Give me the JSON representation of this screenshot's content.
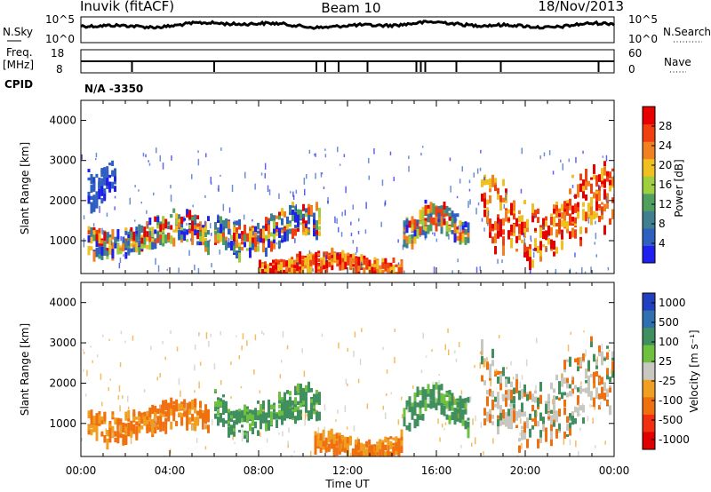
{
  "header": {
    "station": "Inuvik (fitACF)",
    "beam": "Beam 10",
    "date": "18/Nov/2013"
  },
  "strips": {
    "nsky_label": "N.Sky",
    "nsky_ticks": [
      "10^5",
      "10^0"
    ],
    "nsearch_label": "N.Search",
    "nsearch_ticks": [
      "10^5",
      "10^0"
    ],
    "freq_label_1": "Freq.",
    "freq_label_2": "[MHz]",
    "freq_ticks": [
      "18",
      "8"
    ],
    "nave_label": "Nave",
    "nave_ticks": [
      "60",
      "0"
    ],
    "cpid_label": "CPID",
    "cpid_value": "N/A -3350"
  },
  "chart_data": [
    {
      "type": "heatmap",
      "name": "power-panel",
      "xlabel": "Time UT",
      "ylabel": "Slant Range [km]",
      "xlim_hours": [
        0,
        24
      ],
      "ylim": [
        180,
        4500
      ],
      "yticks": [
        "1000",
        "2000",
        "3000",
        "4000"
      ],
      "xticks": [
        "00:00",
        "04:00",
        "08:00",
        "12:00",
        "16:00",
        "20:00",
        "00:00"
      ],
      "colorbar": {
        "label": "Power [dB]",
        "ticks": [
          "4",
          "8",
          "12",
          "16",
          "20",
          "24",
          "28"
        ],
        "colors": [
          "#1f1ff0",
          "#2f5fbf",
          "#3f7f8f",
          "#4f9f5f",
          "#9fcf3f",
          "#f0c020",
          "#f08020",
          "#f04010",
          "#e80000"
        ]
      },
      "features": [
        {
          "t0": 0.3,
          "t1": 1.6,
          "r0": 1900,
          "r1": 2900,
          "level": "low"
        },
        {
          "t0": 0.3,
          "t1": 5.8,
          "r0": 700,
          "r1": 1600,
          "level": "mixed"
        },
        {
          "t0": 6.0,
          "t1": 10.8,
          "r0": 800,
          "r1": 1800,
          "level": "mixed"
        },
        {
          "t0": 8.0,
          "t1": 14.5,
          "r0": 180,
          "r1": 700,
          "level": "high"
        },
        {
          "t0": 14.5,
          "t1": 17.5,
          "r0": 1000,
          "r1": 1900,
          "level": "mixed"
        },
        {
          "t0": 18.0,
          "t1": 24.0,
          "r0": 600,
          "r1": 2600,
          "level": "high"
        }
      ]
    },
    {
      "type": "heatmap",
      "name": "velocity-panel",
      "xlabel": "Time UT",
      "ylabel": "Slant Range [km]",
      "xlim_hours": [
        0,
        24
      ],
      "ylim": [
        180,
        4500
      ],
      "yticks": [
        "1000",
        "2000",
        "3000",
        "4000"
      ],
      "xticks": [
        "00:00",
        "04:00",
        "08:00",
        "12:00",
        "16:00",
        "20:00",
        "00:00"
      ],
      "colorbar": {
        "label": "Velocity [m s⁻¹]",
        "ticks": [
          "1000",
          "500",
          "100",
          "25",
          "-25",
          "-100",
          "-500",
          "-1000"
        ],
        "colors": [
          "#2040c0",
          "#3070b0",
          "#3f8f5f",
          "#70c040",
          "#c8c8c0",
          "#f0a020",
          "#f07010",
          "#f03010",
          "#e00000"
        ]
      },
      "features": [
        {
          "t0": 0.3,
          "t1": 5.8,
          "r0": 700,
          "r1": 1500,
          "velocity": "-100"
        },
        {
          "t0": 6.0,
          "t1": 10.8,
          "r0": 900,
          "r1": 1800,
          "velocity": "100"
        },
        {
          "t0": 10.5,
          "t1": 14.5,
          "r0": 180,
          "r1": 800,
          "velocity": "-100"
        },
        {
          "t0": 14.5,
          "t1": 17.5,
          "r0": 1000,
          "r1": 1900,
          "velocity": "100"
        },
        {
          "t0": 18.0,
          "t1": 24.0,
          "r0": 600,
          "r1": 2700,
          "velocity": "-25"
        }
      ]
    }
  ],
  "colors": {
    "power_low": "#1f3fd0",
    "power_mid": "#3f9f6f",
    "power_high": "#f03010",
    "vel_pos": "#3f8f5f",
    "vel_neg": "#f08020",
    "vel_zero": "#c8c8c0"
  }
}
